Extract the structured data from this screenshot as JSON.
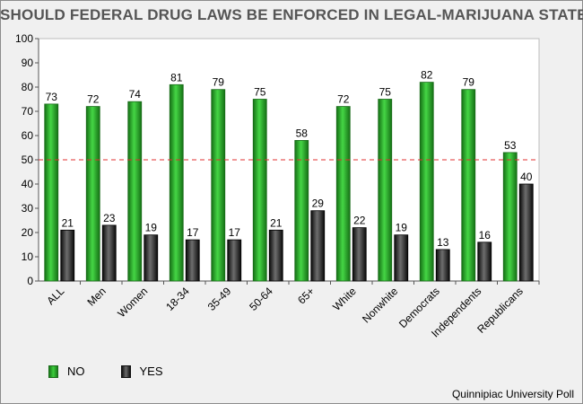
{
  "chart_data": {
    "type": "bar",
    "title": "SHOULD FEDERAL DRUG LAWS BE ENFORCED IN LEGAL-MARIJUANA STATES?",
    "categories": [
      "ALL",
      "Men",
      "Women",
      "18-34",
      "35-49",
      "50-64",
      "65+",
      "White",
      "Nonwhite",
      "Democrats",
      "Independents",
      "Republicans"
    ],
    "series": [
      {
        "name": "NO",
        "values": [
          73,
          72,
          74,
          81,
          79,
          75,
          58,
          72,
          75,
          82,
          79,
          53
        ]
      },
      {
        "name": "YES",
        "values": [
          21,
          23,
          19,
          17,
          17,
          21,
          29,
          22,
          19,
          13,
          16,
          40
        ]
      }
    ],
    "ylim": [
      0,
      100
    ],
    "yticks": [
      0,
      10,
      20,
      30,
      40,
      50,
      60,
      70,
      80,
      90,
      100
    ],
    "reference_line": {
      "value": 50,
      "color": "#e03030"
    },
    "legend_position": "bottom-left",
    "source": "Quinnipiac University Poll"
  },
  "colors": {
    "no": "#2eb82e",
    "yes": "#222222",
    "reference": "#e03030"
  }
}
